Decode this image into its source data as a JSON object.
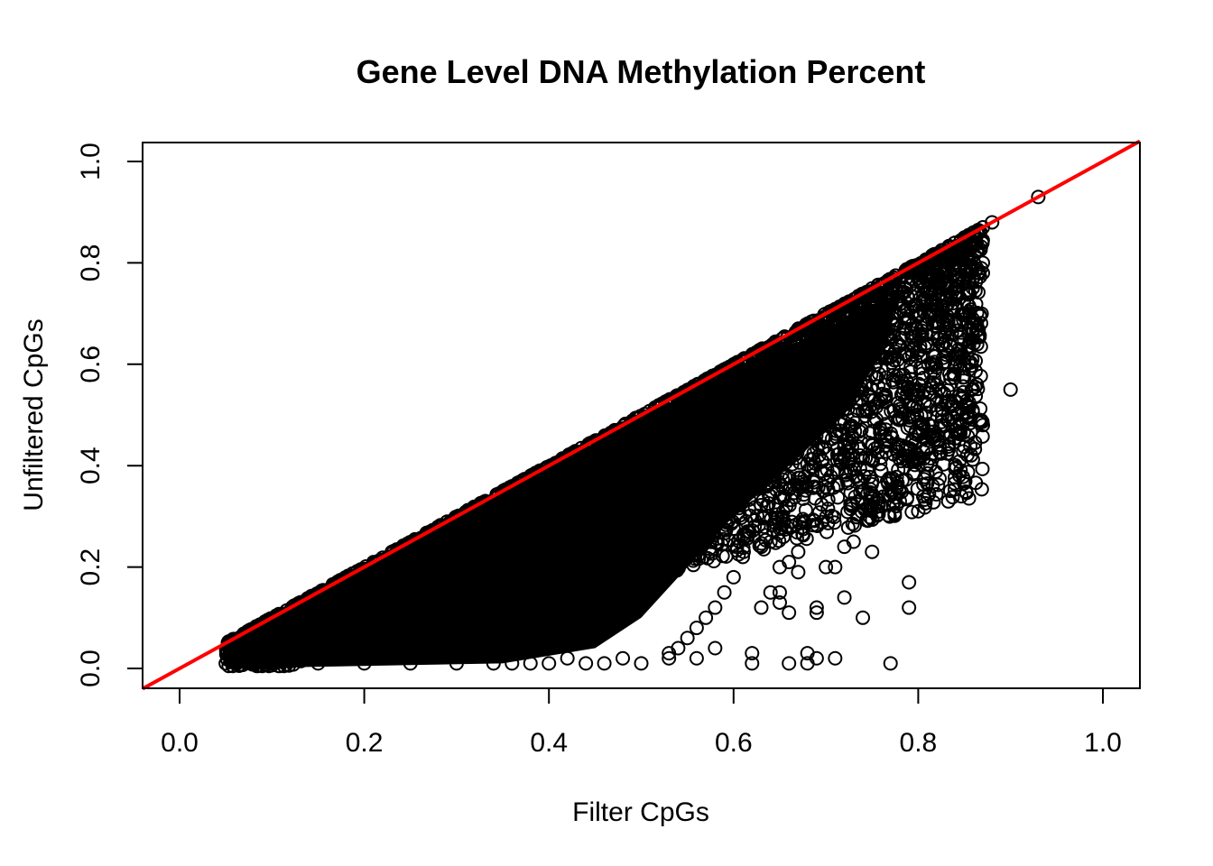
{
  "chart_data": {
    "type": "scatter",
    "title": "Gene Level DNA Methylation Percent",
    "xlabel": "Filter CpGs",
    "ylabel": "Unfiltered CpGs",
    "xlim": [
      0.0,
      1.0
    ],
    "ylim": [
      0.0,
      1.0
    ],
    "x_ticks": [
      "0.0",
      "0.2",
      "0.4",
      "0.6",
      "0.8",
      "1.0"
    ],
    "y_ticks": [
      "0.0",
      "0.2",
      "0.4",
      "0.6",
      "0.8",
      "1.0"
    ],
    "grid": false,
    "legend": "none",
    "marker": "open-circle",
    "point_color": "#000000",
    "reference_line": {
      "type": "identity",
      "slope": 1,
      "intercept": 0,
      "color": "#ff0000"
    },
    "series": [
      {
        "points": [
          [
            0.93,
            0.93
          ],
          [
            0.88,
            0.88
          ],
          [
            0.87,
            0.87
          ],
          [
            0.86,
            0.86
          ],
          [
            0.85,
            0.85
          ],
          [
            0.87,
            0.8
          ],
          [
            0.87,
            0.78
          ],
          [
            0.85,
            0.79
          ],
          [
            0.84,
            0.74
          ],
          [
            0.83,
            0.75
          ],
          [
            0.9,
            0.55
          ],
          [
            0.87,
            0.48
          ],
          [
            0.84,
            0.47
          ],
          [
            0.85,
            0.6
          ],
          [
            0.84,
            0.61
          ],
          [
            0.82,
            0.53
          ],
          [
            0.82,
            0.51
          ],
          [
            0.8,
            0.46
          ],
          [
            0.79,
            0.43
          ],
          [
            0.78,
            0.49
          ],
          [
            0.76,
            0.39
          ],
          [
            0.77,
            0.37
          ],
          [
            0.78,
            0.33
          ],
          [
            0.8,
            0.31
          ],
          [
            0.76,
            0.32
          ],
          [
            0.75,
            0.32
          ],
          [
            0.75,
            0.34
          ],
          [
            0.74,
            0.35
          ],
          [
            0.73,
            0.25
          ],
          [
            0.75,
            0.23
          ],
          [
            0.72,
            0.24
          ],
          [
            0.71,
            0.2
          ],
          [
            0.7,
            0.2
          ],
          [
            0.79,
            0.17
          ],
          [
            0.79,
            0.12
          ],
          [
            0.72,
            0.14
          ],
          [
            0.74,
            0.1
          ],
          [
            0.69,
            0.12
          ],
          [
            0.69,
            0.11
          ],
          [
            0.66,
            0.11
          ],
          [
            0.71,
            0.02
          ],
          [
            0.69,
            0.02
          ],
          [
            0.68,
            0.03
          ],
          [
            0.68,
            0.01
          ],
          [
            0.66,
            0.01
          ],
          [
            0.62,
            0.01
          ],
          [
            0.62,
            0.03
          ],
          [
            0.77,
            0.01
          ],
          [
            0.65,
            0.15
          ],
          [
            0.64,
            0.15
          ],
          [
            0.65,
            0.13
          ],
          [
            0.63,
            0.12
          ],
          [
            0.67,
            0.19
          ],
          [
            0.66,
            0.21
          ],
          [
            0.67,
            0.23
          ],
          [
            0.65,
            0.2
          ],
          [
            0.64,
            0.25
          ],
          [
            0.63,
            0.24
          ],
          [
            0.61,
            0.22
          ],
          [
            0.6,
            0.18
          ],
          [
            0.59,
            0.15
          ],
          [
            0.58,
            0.12
          ],
          [
            0.57,
            0.1
          ],
          [
            0.56,
            0.08
          ],
          [
            0.55,
            0.06
          ],
          [
            0.54,
            0.04
          ],
          [
            0.53,
            0.03
          ],
          [
            0.5,
            0.01
          ],
          [
            0.48,
            0.02
          ],
          [
            0.46,
            0.01
          ],
          [
            0.44,
            0.01
          ],
          [
            0.42,
            0.02
          ],
          [
            0.4,
            0.01
          ],
          [
            0.38,
            0.01
          ],
          [
            0.36,
            0.01
          ],
          [
            0.34,
            0.01
          ],
          [
            0.3,
            0.01
          ],
          [
            0.25,
            0.01
          ],
          [
            0.2,
            0.01
          ],
          [
            0.15,
            0.01
          ],
          [
            0.1,
            0.01
          ],
          [
            0.06,
            0.01
          ],
          [
            0.05,
            0.01
          ],
          [
            0.58,
            0.04
          ],
          [
            0.56,
            0.02
          ],
          [
            0.53,
            0.02
          ]
        ]
      }
    ]
  }
}
